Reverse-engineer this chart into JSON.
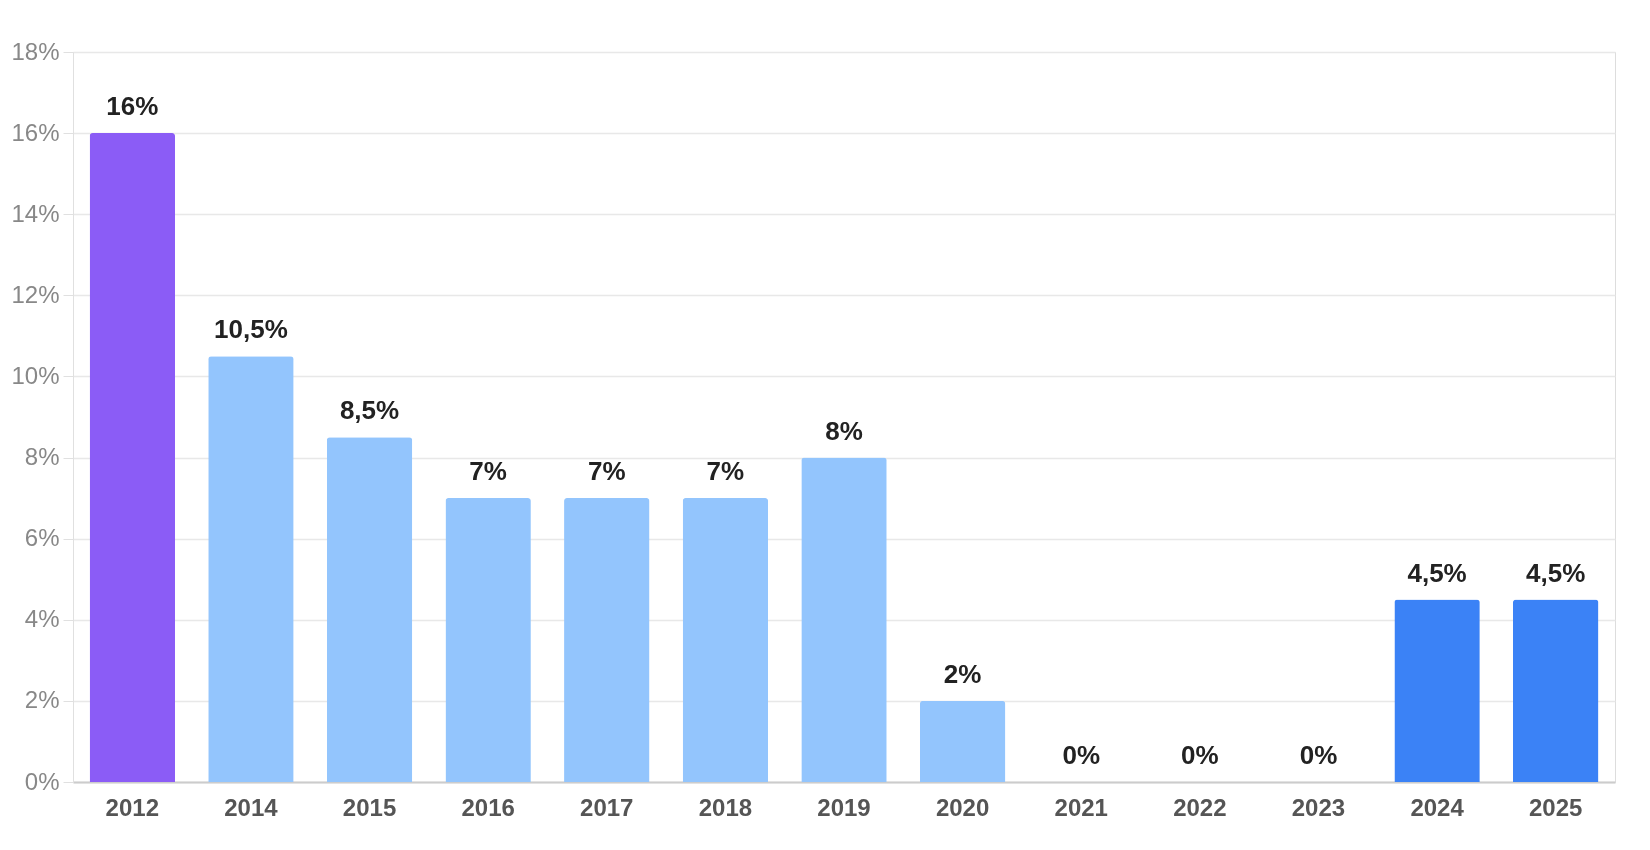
{
  "chart_data": {
    "type": "bar",
    "categories": [
      "2012",
      "2014",
      "2015",
      "2016",
      "2017",
      "2018",
      "2019",
      "2020",
      "2021",
      "2022",
      "2023",
      "2024",
      "2025"
    ],
    "values": [
      16,
      10.5,
      8.5,
      7,
      7,
      7,
      8,
      2,
      0,
      0,
      0,
      4.5,
      4.5
    ],
    "colors": [
      "#8b5cf6",
      "#93c5fd",
      "#93c5fd",
      "#93c5fd",
      "#93c5fd",
      "#93c5fd",
      "#93c5fd",
      "#93c5fd",
      "#93c5fd",
      "#93c5fd",
      "#93c5fd",
      "#3b82f6",
      "#3b82f6"
    ],
    "value_labels": [
      "16%",
      "10,5%",
      "8,5%",
      "7%",
      "7%",
      "7%",
      "8%",
      "2%",
      "0%",
      "0%",
      "0%",
      "4,5%",
      "4,5%"
    ],
    "ylim": [
      0,
      18
    ],
    "yticks": [
      {
        "value": 0,
        "label": "0%"
      },
      {
        "value": 2,
        "label": "2%"
      },
      {
        "value": 4,
        "label": "4%"
      },
      {
        "value": 6,
        "label": "6%"
      },
      {
        "value": 8,
        "label": "8%"
      },
      {
        "value": 10,
        "label": "10%"
      },
      {
        "value": 12,
        "label": "12%"
      },
      {
        "value": 14,
        "label": "14%"
      },
      {
        "value": 16,
        "label": "16%"
      },
      {
        "value": 18,
        "label": "18%"
      }
    ],
    "grid": "y"
  }
}
